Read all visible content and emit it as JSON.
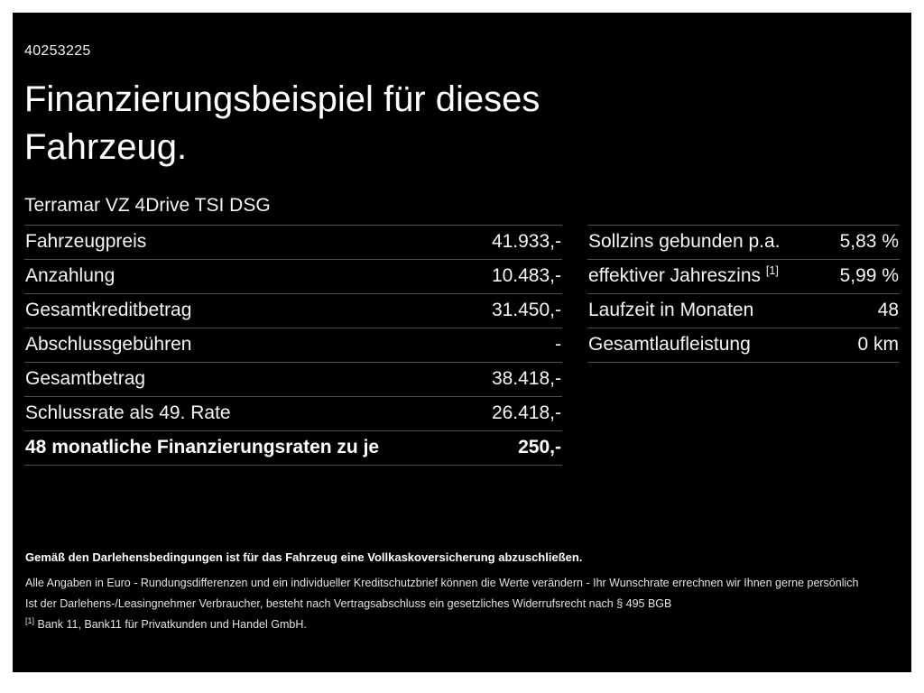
{
  "meta": {
    "doc_id": "40253225"
  },
  "header": {
    "title_line1": "Finanzierungsbeispiel für dieses",
    "title_line2": "Fahrzeug.",
    "vehicle_name": "Terramar VZ 4Drive TSI DSG"
  },
  "colors": {
    "background": "#000000",
    "frame": "#ffffff",
    "text": "#ffffff",
    "divider": "#4f4f4f"
  },
  "finance_table": {
    "rows": [
      {
        "label": "Fahrzeugpreis",
        "value": "41.933,-"
      },
      {
        "label": "Anzahlung",
        "value": "10.483,-"
      },
      {
        "label": "Gesamtkreditbetrag",
        "value": "31.450,-"
      },
      {
        "label": "Abschlussgebühren",
        "value": "-"
      },
      {
        "label": "Gesamtbetrag",
        "value": "38.418,-"
      },
      {
        "label": "Schlussrate als 49. Rate",
        "value": "26.418,-"
      },
      {
        "label": "48 monatliche Finanzierungsraten zu je",
        "value": "250,-"
      }
    ]
  },
  "conditions_table": {
    "rows": [
      {
        "label": "Sollzins gebunden p.a.",
        "sup": "",
        "value": "5,83 %"
      },
      {
        "label": "effektiver Jahreszins",
        "sup": "[1]",
        "value": "5,99 %"
      },
      {
        "label": "Laufzeit in Monaten",
        "sup": "",
        "value": "48"
      },
      {
        "label": "Gesamtlaufleistung",
        "sup": "",
        "value": "0 km"
      }
    ]
  },
  "footer": {
    "line_bold": "Gemäß den Darlehensbedingungen ist für das Fahrzeug eine Vollkaskoversicherung abzuschließen.",
    "line2": "Alle Angaben in Euro - Rundungsdifferenzen und ein individueller Kreditschutzbrief können die Werte verändern - Ihr Wunschrate errechnen wir Ihnen gerne persönlich",
    "line3": "Ist der Darlehens-/Leasingnehmer Verbraucher, besteht nach Vertragsabschluss ein gesetzliches Widerrufsrecht nach § 495 BGB",
    "note_sup": "[1]",
    "note_text": "Bank 11, Bank11 für Privatkunden und Handel GmbH."
  }
}
